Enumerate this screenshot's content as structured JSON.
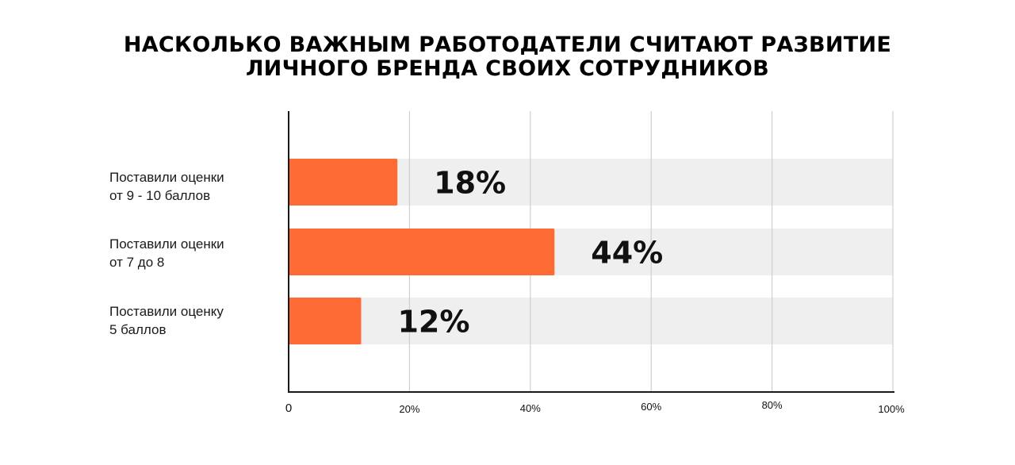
{
  "chart_data": {
    "type": "bar",
    "orientation": "horizontal",
    "title": [
      "НАСКОЛЬКО ВАЖНЫМ РАБОТОДАТЕЛИ СЧИТАЮТ РАЗВИТИЕ",
      "ЛИЧНОГО БРЕНДА СВОИХ СОТРУДНИКОВ"
    ],
    "categories": [
      [
        "Поставили оценки",
        "от 9 - 10 баллов"
      ],
      [
        "Поставили оценки",
        "от 7 до 8"
      ],
      [
        "Поставили оценку",
        "5 баллов"
      ]
    ],
    "values": [
      18,
      44,
      12
    ],
    "data_labels": [
      "18%",
      "44%",
      "12%"
    ],
    "xlim": [
      0,
      100
    ],
    "x_ticks": [
      {
        "value": 0,
        "label": "0"
      },
      {
        "value": 20,
        "label": "20%"
      },
      {
        "value": 40,
        "label": "40%"
      },
      {
        "value": 60,
        "label": "60%"
      },
      {
        "value": 80,
        "label": "80%"
      },
      {
        "value": 100,
        "label": "100%"
      }
    ],
    "grid": "vertical",
    "background_track": true,
    "colors": {
      "bar": "#ff6b35",
      "track": "#efefef",
      "grid": "#cfcfcf",
      "axis": "#1a1a1a",
      "text": "#111111"
    }
  }
}
